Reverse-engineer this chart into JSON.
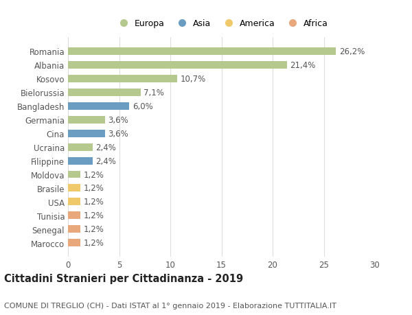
{
  "countries": [
    "Romania",
    "Albania",
    "Kosovo",
    "Bielorussia",
    "Bangladesh",
    "Germania",
    "Cina",
    "Ucraina",
    "Filippine",
    "Moldova",
    "Brasile",
    "USA",
    "Tunisia",
    "Senegal",
    "Marocco"
  ],
  "values": [
    26.2,
    21.4,
    10.7,
    7.1,
    6.0,
    3.6,
    3.6,
    2.4,
    2.4,
    1.2,
    1.2,
    1.2,
    1.2,
    1.2,
    1.2
  ],
  "labels": [
    "26,2%",
    "21,4%",
    "10,7%",
    "7,1%",
    "6,0%",
    "3,6%",
    "3,6%",
    "2,4%",
    "2,4%",
    "1,2%",
    "1,2%",
    "1,2%",
    "1,2%",
    "1,2%",
    "1,2%"
  ],
  "continents": [
    "Europa",
    "Europa",
    "Europa",
    "Europa",
    "Asia",
    "Europa",
    "Asia",
    "Europa",
    "Asia",
    "Europa",
    "America",
    "America",
    "Africa",
    "Africa",
    "Africa"
  ],
  "colors": {
    "Europa": "#b5c98e",
    "Asia": "#6b9dc2",
    "America": "#f0c96b",
    "Africa": "#e8a87c"
  },
  "legend_order": [
    "Europa",
    "Asia",
    "America",
    "Africa"
  ],
  "xlim": [
    0,
    30
  ],
  "xticks": [
    0,
    5,
    10,
    15,
    20,
    25,
    30
  ],
  "title": "Cittadini Stranieri per Cittadinanza - 2019",
  "subtitle": "COMUNE DI TREGLIO (CH) - Dati ISTAT al 1° gennaio 2019 - Elaborazione TUTTITALIA.IT",
  "background_color": "#ffffff",
  "grid_color": "#dddddd",
  "bar_height": 0.55,
  "label_fontsize": 8.5,
  "tick_fontsize": 8.5,
  "title_fontsize": 10.5,
  "subtitle_fontsize": 8
}
